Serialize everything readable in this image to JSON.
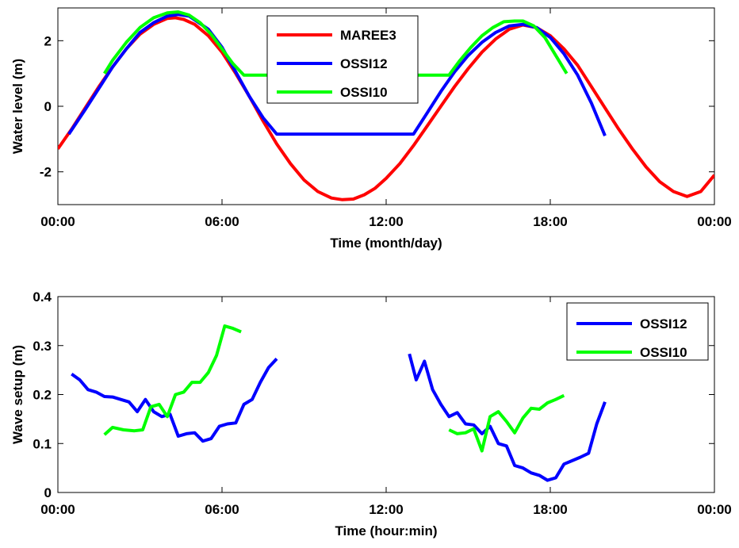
{
  "chart_data": [
    {
      "type": "line",
      "xlabel": "Time (month/day)",
      "ylabel": "Water level (m)",
      "xlim": [
        0,
        24
      ],
      "ylim": [
        -3,
        3
      ],
      "xticks": [
        0,
        6,
        12,
        18,
        24
      ],
      "xtick_labels": [
        "00:00",
        "06:00",
        "12:00",
        "18:00",
        "00:00"
      ],
      "yticks": [
        -2,
        0,
        2
      ],
      "ytick_labels": [
        "-2",
        "0",
        "2"
      ],
      "grid": false,
      "legend_position": "top-center",
      "series": [
        {
          "name": "MAREE3",
          "color": "#ff0000",
          "x": [
            0.0,
            0.5,
            1.0,
            1.5,
            2.0,
            2.5,
            3.0,
            3.5,
            4.0,
            4.3,
            4.6,
            5.0,
            5.5,
            6.0,
            6.5,
            7.0,
            7.5,
            8.0,
            8.5,
            9.0,
            9.5,
            10.0,
            10.4,
            10.8,
            11.2,
            11.6,
            12.0,
            12.5,
            13.0,
            13.5,
            14.0,
            14.5,
            15.0,
            15.5,
            16.0,
            16.5,
            17.0,
            17.5,
            18.0,
            18.5,
            19.0,
            19.5,
            20.0,
            20.5,
            21.0,
            21.5,
            22.0,
            22.5,
            23.0,
            23.5,
            24.0
          ],
          "y": [
            -1.3,
            -0.7,
            -0.05,
            0.6,
            1.2,
            1.75,
            2.2,
            2.5,
            2.68,
            2.7,
            2.65,
            2.5,
            2.15,
            1.65,
            1.0,
            0.3,
            -0.45,
            -1.15,
            -1.75,
            -2.25,
            -2.6,
            -2.8,
            -2.85,
            -2.83,
            -2.7,
            -2.5,
            -2.2,
            -1.75,
            -1.2,
            -0.6,
            0.0,
            0.6,
            1.15,
            1.65,
            2.05,
            2.35,
            2.48,
            2.4,
            2.15,
            1.75,
            1.25,
            0.6,
            -0.05,
            -0.7,
            -1.3,
            -1.85,
            -2.3,
            -2.6,
            -2.75,
            -2.6,
            -2.1
          ]
        },
        {
          "name": "OSSI12",
          "color": "#0000ff",
          "x": [
            0.4,
            1.0,
            1.5,
            2.0,
            2.5,
            3.0,
            3.5,
            4.0,
            4.4,
            4.8,
            5.5,
            6.0,
            6.5,
            7.0,
            7.5,
            8.0,
            13.0,
            13.5,
            14.0,
            14.5,
            15.0,
            15.5,
            16.0,
            16.5,
            17.0,
            17.5,
            18.0,
            18.5,
            19.0,
            19.5,
            20.0
          ],
          "y": [
            -0.85,
            -0.1,
            0.55,
            1.2,
            1.75,
            2.25,
            2.55,
            2.75,
            2.8,
            2.75,
            2.35,
            1.8,
            1.05,
            0.3,
            -0.35,
            -0.85,
            -0.85,
            -0.2,
            0.45,
            1.05,
            1.55,
            1.95,
            2.25,
            2.45,
            2.5,
            2.4,
            2.1,
            1.6,
            0.95,
            0.1,
            -0.9
          ]
        },
        {
          "name": "OSSI10",
          "color": "#00ff00",
          "x": [
            1.7,
            2.0,
            2.5,
            3.0,
            3.5,
            4.0,
            4.4,
            4.8,
            5.2,
            5.6,
            6.0,
            6.4,
            6.8,
            14.3,
            14.7,
            15.1,
            15.5,
            15.9,
            16.3,
            16.7,
            17.0,
            17.4,
            17.8,
            18.2,
            18.6
          ],
          "y": [
            1.0,
            1.4,
            1.95,
            2.4,
            2.7,
            2.85,
            2.88,
            2.78,
            2.55,
            2.2,
            1.75,
            1.3,
            0.95,
            0.95,
            1.4,
            1.8,
            2.15,
            2.4,
            2.58,
            2.6,
            2.6,
            2.45,
            2.1,
            1.55,
            1.0
          ]
        }
      ]
    },
    {
      "type": "line",
      "xlabel": "Time (hour:min)",
      "ylabel": "Wave setup (m)",
      "xlim": [
        0,
        24
      ],
      "ylim": [
        0,
        0.4
      ],
      "xticks": [
        0,
        6,
        12,
        18,
        24
      ],
      "xtick_labels": [
        "00:00",
        "06:00",
        "12:00",
        "18:00",
        "00:00"
      ],
      "yticks": [
        0,
        0.1,
        0.2,
        0.3,
        0.4
      ],
      "ytick_labels": [
        "0",
        "0.1",
        "0.2",
        "0.3",
        "0.4"
      ],
      "grid": false,
      "legend_position": "top-right",
      "series": [
        {
          "name": "OSSI12",
          "color": "#0000ff",
          "segments": [
            {
              "x": [
                0.5,
                0.8,
                1.1,
                1.4,
                1.7,
                2.0,
                2.3,
                2.6,
                2.9,
                3.2,
                3.5,
                3.8,
                4.1,
                4.4,
                4.7,
                5.0,
                5.3,
                5.6,
                5.9,
                6.2,
                6.5,
                6.8,
                7.1,
                7.4,
                7.7,
                8.0
              ],
              "y": [
                0.242,
                0.23,
                0.21,
                0.205,
                0.196,
                0.195,
                0.19,
                0.185,
                0.165,
                0.19,
                0.165,
                0.155,
                0.16,
                0.115,
                0.12,
                0.122,
                0.105,
                0.11,
                0.135,
                0.14,
                0.142,
                0.18,
                0.19,
                0.225,
                0.255,
                0.273
              ]
            },
            {
              "x": [
                12.85,
                13.1,
                13.4,
                13.7,
                14.0,
                14.3,
                14.6,
                14.9,
                15.2,
                15.5,
                15.8,
                16.1,
                16.4,
                16.7,
                17.0,
                17.3,
                17.6,
                17.9,
                18.2,
                18.5,
                18.8,
                19.1,
                19.4,
                19.7,
                20.0
              ],
              "y": [
                0.283,
                0.23,
                0.268,
                0.21,
                0.18,
                0.155,
                0.163,
                0.14,
                0.138,
                0.12,
                0.135,
                0.1,
                0.095,
                0.055,
                0.05,
                0.04,
                0.035,
                0.025,
                0.03,
                0.058,
                0.065,
                0.072,
                0.08,
                0.14,
                0.185
              ]
            }
          ]
        },
        {
          "name": "OSSI10",
          "color": "#00ff00",
          "segments": [
            {
              "x": [
                1.7,
                2.0,
                2.4,
                2.8,
                3.1,
                3.4,
                3.7,
                4.0,
                4.3,
                4.6,
                4.9,
                5.2,
                5.5,
                5.8,
                6.1,
                6.4,
                6.7
              ],
              "y": [
                0.118,
                0.133,
                0.128,
                0.126,
                0.128,
                0.175,
                0.18,
                0.155,
                0.2,
                0.205,
                0.225,
                0.225,
                0.245,
                0.28,
                0.34,
                0.335,
                0.328
              ]
            },
            {
              "x": [
                14.3,
                14.6,
                14.9,
                15.2,
                15.5,
                15.8,
                16.1,
                16.4,
                16.7,
                17.0,
                17.3,
                17.6,
                17.9,
                18.2,
                18.5
              ],
              "y": [
                0.128,
                0.12,
                0.122,
                0.13,
                0.085,
                0.155,
                0.165,
                0.145,
                0.122,
                0.152,
                0.172,
                0.17,
                0.183,
                0.19,
                0.198
              ]
            }
          ]
        }
      ]
    }
  ]
}
